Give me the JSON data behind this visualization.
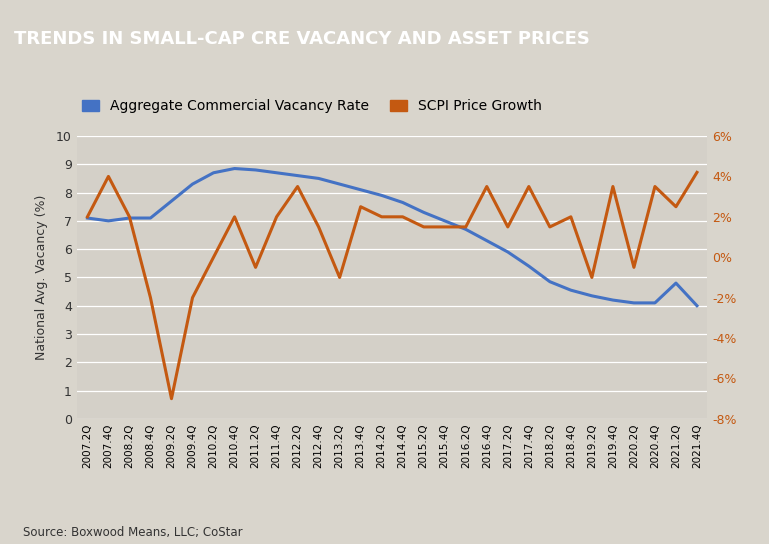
{
  "title": "TRENDS IN SMALL-CAP CRE VACANCY AND ASSET PRICES",
  "title_bg_color": "#636363",
  "title_text_color": "#ffffff",
  "bg_color": "#d9d5cc",
  "plot_bg_color": "#d4d0c8",
  "legend1": "Aggregate Commercial Vacancy Rate",
  "legend2": "SCPI Price Growth",
  "color1": "#4472c4",
  "color2": "#c45911",
  "ylabel_left": "National Avg. Vacancy (%)",
  "source_text": "Source: Boxwood Means, LLC; CoStar",
  "x_labels": [
    "2007.2Q",
    "2007.4Q",
    "2008.2Q",
    "2008.4Q",
    "2009.2Q",
    "2009.4Q",
    "2010.2Q",
    "2010.4Q",
    "2011.2Q",
    "2011.4Q",
    "2012.2Q",
    "2012.4Q",
    "2013.2Q",
    "2013.4Q",
    "2014.2Q",
    "2014.4Q",
    "2015.2Q",
    "2015.4Q",
    "2016.2Q",
    "2016.4Q",
    "2017.2Q",
    "2017.4Q",
    "2018.2Q",
    "2018.4Q",
    "2019.2Q",
    "2019.4Q",
    "2020.2Q",
    "2020.4Q",
    "2021.2Q",
    "2021.4Q"
  ],
  "vacancy": [
    7.1,
    7.0,
    7.1,
    7.1,
    7.7,
    8.3,
    8.7,
    8.85,
    8.8,
    8.7,
    8.6,
    8.5,
    8.3,
    8.1,
    7.9,
    7.65,
    7.3,
    7.0,
    6.7,
    6.3,
    5.9,
    5.4,
    4.85,
    4.55,
    4.35,
    4.2,
    4.1,
    4.1,
    4.8,
    4.0
  ],
  "scpi": [
    2.0,
    4.0,
    2.0,
    -2.0,
    -7.0,
    -2.0,
    0.0,
    2.0,
    -0.5,
    2.0,
    3.5,
    1.5,
    -1.0,
    2.5,
    2.0,
    2.0,
    1.5,
    1.5,
    1.5,
    3.5,
    1.5,
    3.5,
    1.5,
    2.0,
    -1.0,
    3.5,
    -0.5,
    3.5,
    2.5,
    4.2
  ]
}
